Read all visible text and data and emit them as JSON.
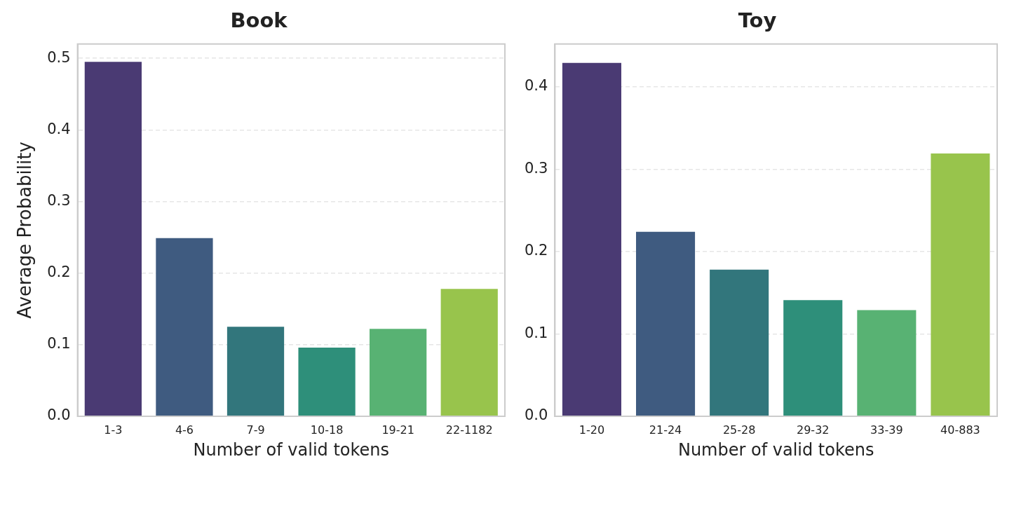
{
  "chart_data": [
    {
      "type": "bar",
      "title": "Book",
      "xlabel": "Number of valid tokens",
      "ylabel": "Average Probability",
      "categories": [
        "1-3",
        "4-6",
        "7-9",
        "10-18",
        "19-21",
        "22-1182"
      ],
      "values": [
        0.495,
        0.249,
        0.125,
        0.096,
        0.122,
        0.178
      ],
      "colors": [
        "#4a3a73",
        "#3f5b80",
        "#32767c",
        "#2e8f7a",
        "#58b273",
        "#98c44c"
      ],
      "ylim": [
        0,
        0.52
      ],
      "yticks": [
        {
          "value": 0,
          "label": "0.0"
        },
        0.1,
        0.2,
        0.3,
        0.4,
        0.5
      ],
      "grid": "y"
    },
    {
      "type": "bar",
      "title": "Toy",
      "xlabel": "Number of valid tokens",
      "categories": [
        "1-20",
        "21-24",
        "25-28",
        "29-32",
        "33-39",
        "40-883"
      ],
      "values": [
        0.429,
        0.224,
        0.178,
        0.141,
        0.129,
        0.319
      ],
      "colors": [
        "#4a3a73",
        "#3f5b80",
        "#32767c",
        "#2e8f7a",
        "#58b273",
        "#98c44c"
      ],
      "ylim": [
        0,
        0.452
      ],
      "yticks": [
        {
          "value": 0,
          "label": "0.0"
        },
        0.1,
        0.2,
        0.3,
        0.4
      ],
      "grid": "y"
    }
  ]
}
